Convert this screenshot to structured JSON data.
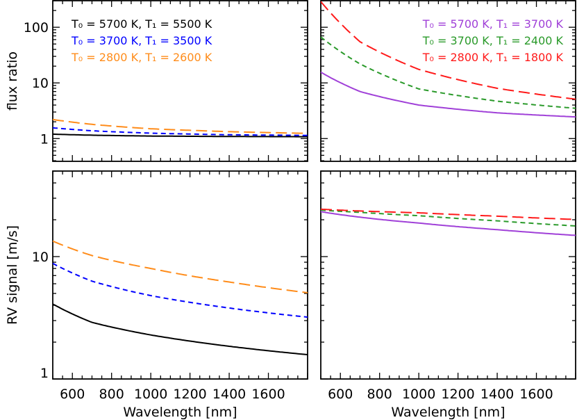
{
  "chart_data": [
    {
      "type": "line",
      "panel": "top-left",
      "ylabel": "flux ratio",
      "xlabel": "",
      "xlim": [
        500,
        1800
      ],
      "ylim": [
        0.39,
        300
      ],
      "yscale": "log",
      "y_ticks": [
        "1",
        "10",
        "100"
      ],
      "x_ticks": [],
      "legend_placement": "top-left",
      "x": [
        500,
        700,
        1000,
        1400,
        1800
      ],
      "series": [
        {
          "name": "T₀ = 5700 K, T₁ = 5500 K",
          "color": "#000000",
          "style": "solid",
          "values": [
            1.2,
            1.15,
            1.11,
            1.09,
            1.08
          ]
        },
        {
          "name": "T₀ = 3700 K, T₁ = 3500 K",
          "color": "#0000ff",
          "style": "short-dash",
          "values": [
            1.56,
            1.38,
            1.25,
            1.17,
            1.14
          ]
        },
        {
          "name": "T₀ = 2800 K, T₁ = 2600 K",
          "color": "#ff8c1a",
          "style": "long-dash",
          "values": [
            2.2,
            1.8,
            1.5,
            1.33,
            1.24
          ]
        }
      ]
    },
    {
      "type": "line",
      "panel": "top-right",
      "ylabel": "",
      "xlabel": "",
      "xlim": [
        500,
        1800
      ],
      "ylim": [
        0.39,
        300
      ],
      "yscale": "log",
      "y_ticks": [],
      "x_ticks": [],
      "legend_placement": "top-right",
      "x": [
        500,
        700,
        1000,
        1400,
        1800
      ],
      "series": [
        {
          "name": "T₀ = 5700 K, T₁ = 3700 K",
          "color": "#a040d8",
          "style": "solid",
          "values": [
            15.6,
            7.0,
            4.0,
            2.9,
            2.45
          ]
        },
        {
          "name": "T₀ = 3700 K, T₁ = 2400 K",
          "color": "#2a9a2a",
          "style": "short-dash",
          "values": [
            67,
            22,
            7.8,
            4.7,
            3.5
          ]
        },
        {
          "name": "T₀ = 2800 K, T₁ = 1800 K",
          "color": "#ff1a1a",
          "style": "long-dash",
          "values": [
            290,
            55,
            17.5,
            8.0,
            5.1
          ]
        }
      ]
    },
    {
      "type": "line",
      "panel": "bottom-left",
      "ylabel": "RV signal [m/s]",
      "xlabel": "Wavelength [nm]",
      "xlim": [
        500,
        1800
      ],
      "ylim": [
        1,
        50
      ],
      "yscale": "log",
      "y_ticks": [
        "1",
        "10"
      ],
      "x_ticks": [
        "600",
        "800",
        "1000",
        "1200",
        "1400",
        "1600"
      ],
      "x": [
        500,
        700,
        1000,
        1400,
        1800
      ],
      "series": [
        {
          "color": "#000000",
          "style": "solid",
          "values": [
            4.1,
            2.9,
            2.29,
            1.85,
            1.58
          ]
        },
        {
          "color": "#0000ff",
          "style": "short-dash",
          "values": [
            8.8,
            6.3,
            4.8,
            3.8,
            3.2
          ]
        },
        {
          "color": "#ff8c1a",
          "style": "long-dash",
          "values": [
            13.4,
            10.2,
            8.0,
            6.2,
            5.07
          ]
        }
      ]
    },
    {
      "type": "line",
      "panel": "bottom-right",
      "ylabel": "",
      "xlabel": "Wavelength [nm]",
      "xlim": [
        500,
        1800
      ],
      "ylim": [
        1,
        50
      ],
      "yscale": "log",
      "y_ticks": [],
      "x_ticks": [
        "600",
        "800",
        "1000",
        "1200",
        "1400",
        "1600"
      ],
      "x": [
        500,
        700,
        1000,
        1400,
        1800
      ],
      "series": [
        {
          "color": "#a040d8",
          "style": "solid",
          "values": [
            23.3,
            21.0,
            18.8,
            16.6,
            14.9
          ]
        },
        {
          "color": "#2a9a2a",
          "style": "short-dash",
          "values": [
            24.0,
            23.0,
            21.6,
            19.6,
            17.8
          ]
        },
        {
          "color": "#ff1a1a",
          "style": "long-dash",
          "values": [
            24.4,
            23.6,
            22.8,
            21.4,
            20.1
          ]
        }
      ]
    }
  ]
}
